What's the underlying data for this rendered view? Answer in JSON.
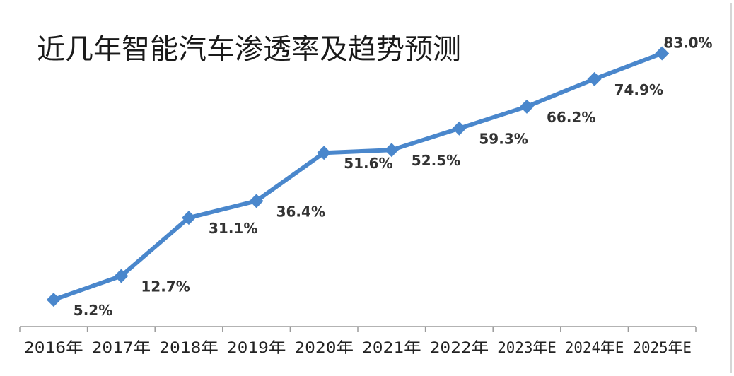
{
  "chart_data": {
    "type": "line",
    "title": "近几年智能汽车渗透率及趋势预测",
    "categories": [
      "2016年",
      "2017年",
      "2018年",
      "2019年",
      "2020年",
      "2021年",
      "2022年",
      "2023年E",
      "2024年E",
      "2025年E"
    ],
    "values": [
      5.2,
      12.7,
      31.1,
      36.4,
      51.6,
      52.5,
      59.3,
      66.2,
      74.9,
      83.0
    ],
    "data_labels": [
      "5.2%",
      "12.7%",
      "31.1%",
      "36.4%",
      "51.6%",
      "52.5%",
      "59.3%",
      "66.2%",
      "74.9%",
      "83.0%"
    ],
    "ylim": [
      0,
      100
    ],
    "grid": false,
    "marker": "diamond",
    "colors": {
      "line": "#4a87cc",
      "axis": "#9a9a9a",
      "frame": "#d0d0d0"
    }
  }
}
